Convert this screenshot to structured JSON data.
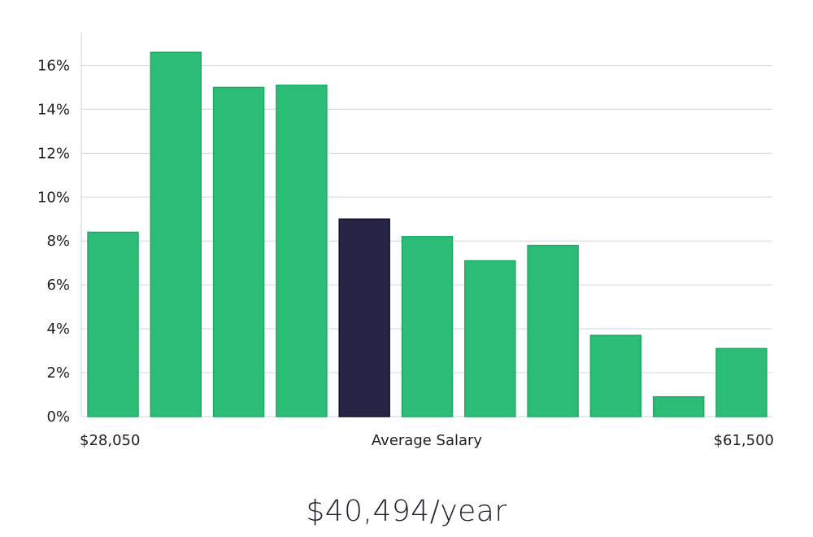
{
  "chart_data": {
    "type": "bar",
    "y_unit": "%",
    "ylim": [
      0,
      17.5
    ],
    "y_ticks": [
      0,
      2,
      4,
      6,
      8,
      10,
      12,
      14,
      16
    ],
    "y_tick_labels": [
      "0%",
      "2%",
      "4%",
      "6%",
      "8%",
      "10%",
      "12%",
      "14%",
      "16%"
    ],
    "grid": true,
    "values": [
      8.4,
      16.6,
      15.0,
      15.1,
      9.0,
      8.2,
      7.1,
      7.8,
      3.7,
      0.9,
      3.1
    ],
    "highlight_index": 4,
    "x_labels": {
      "min": "$28,050",
      "center": "Average Salary",
      "max": "$61,500"
    },
    "colors": {
      "bar": "#2bbd76",
      "bar_stroke": "#20a866",
      "highlight": "#272545",
      "grid": "#dcdde1",
      "axis": "#cfd0d4"
    }
  },
  "headline": "$40,494/year"
}
